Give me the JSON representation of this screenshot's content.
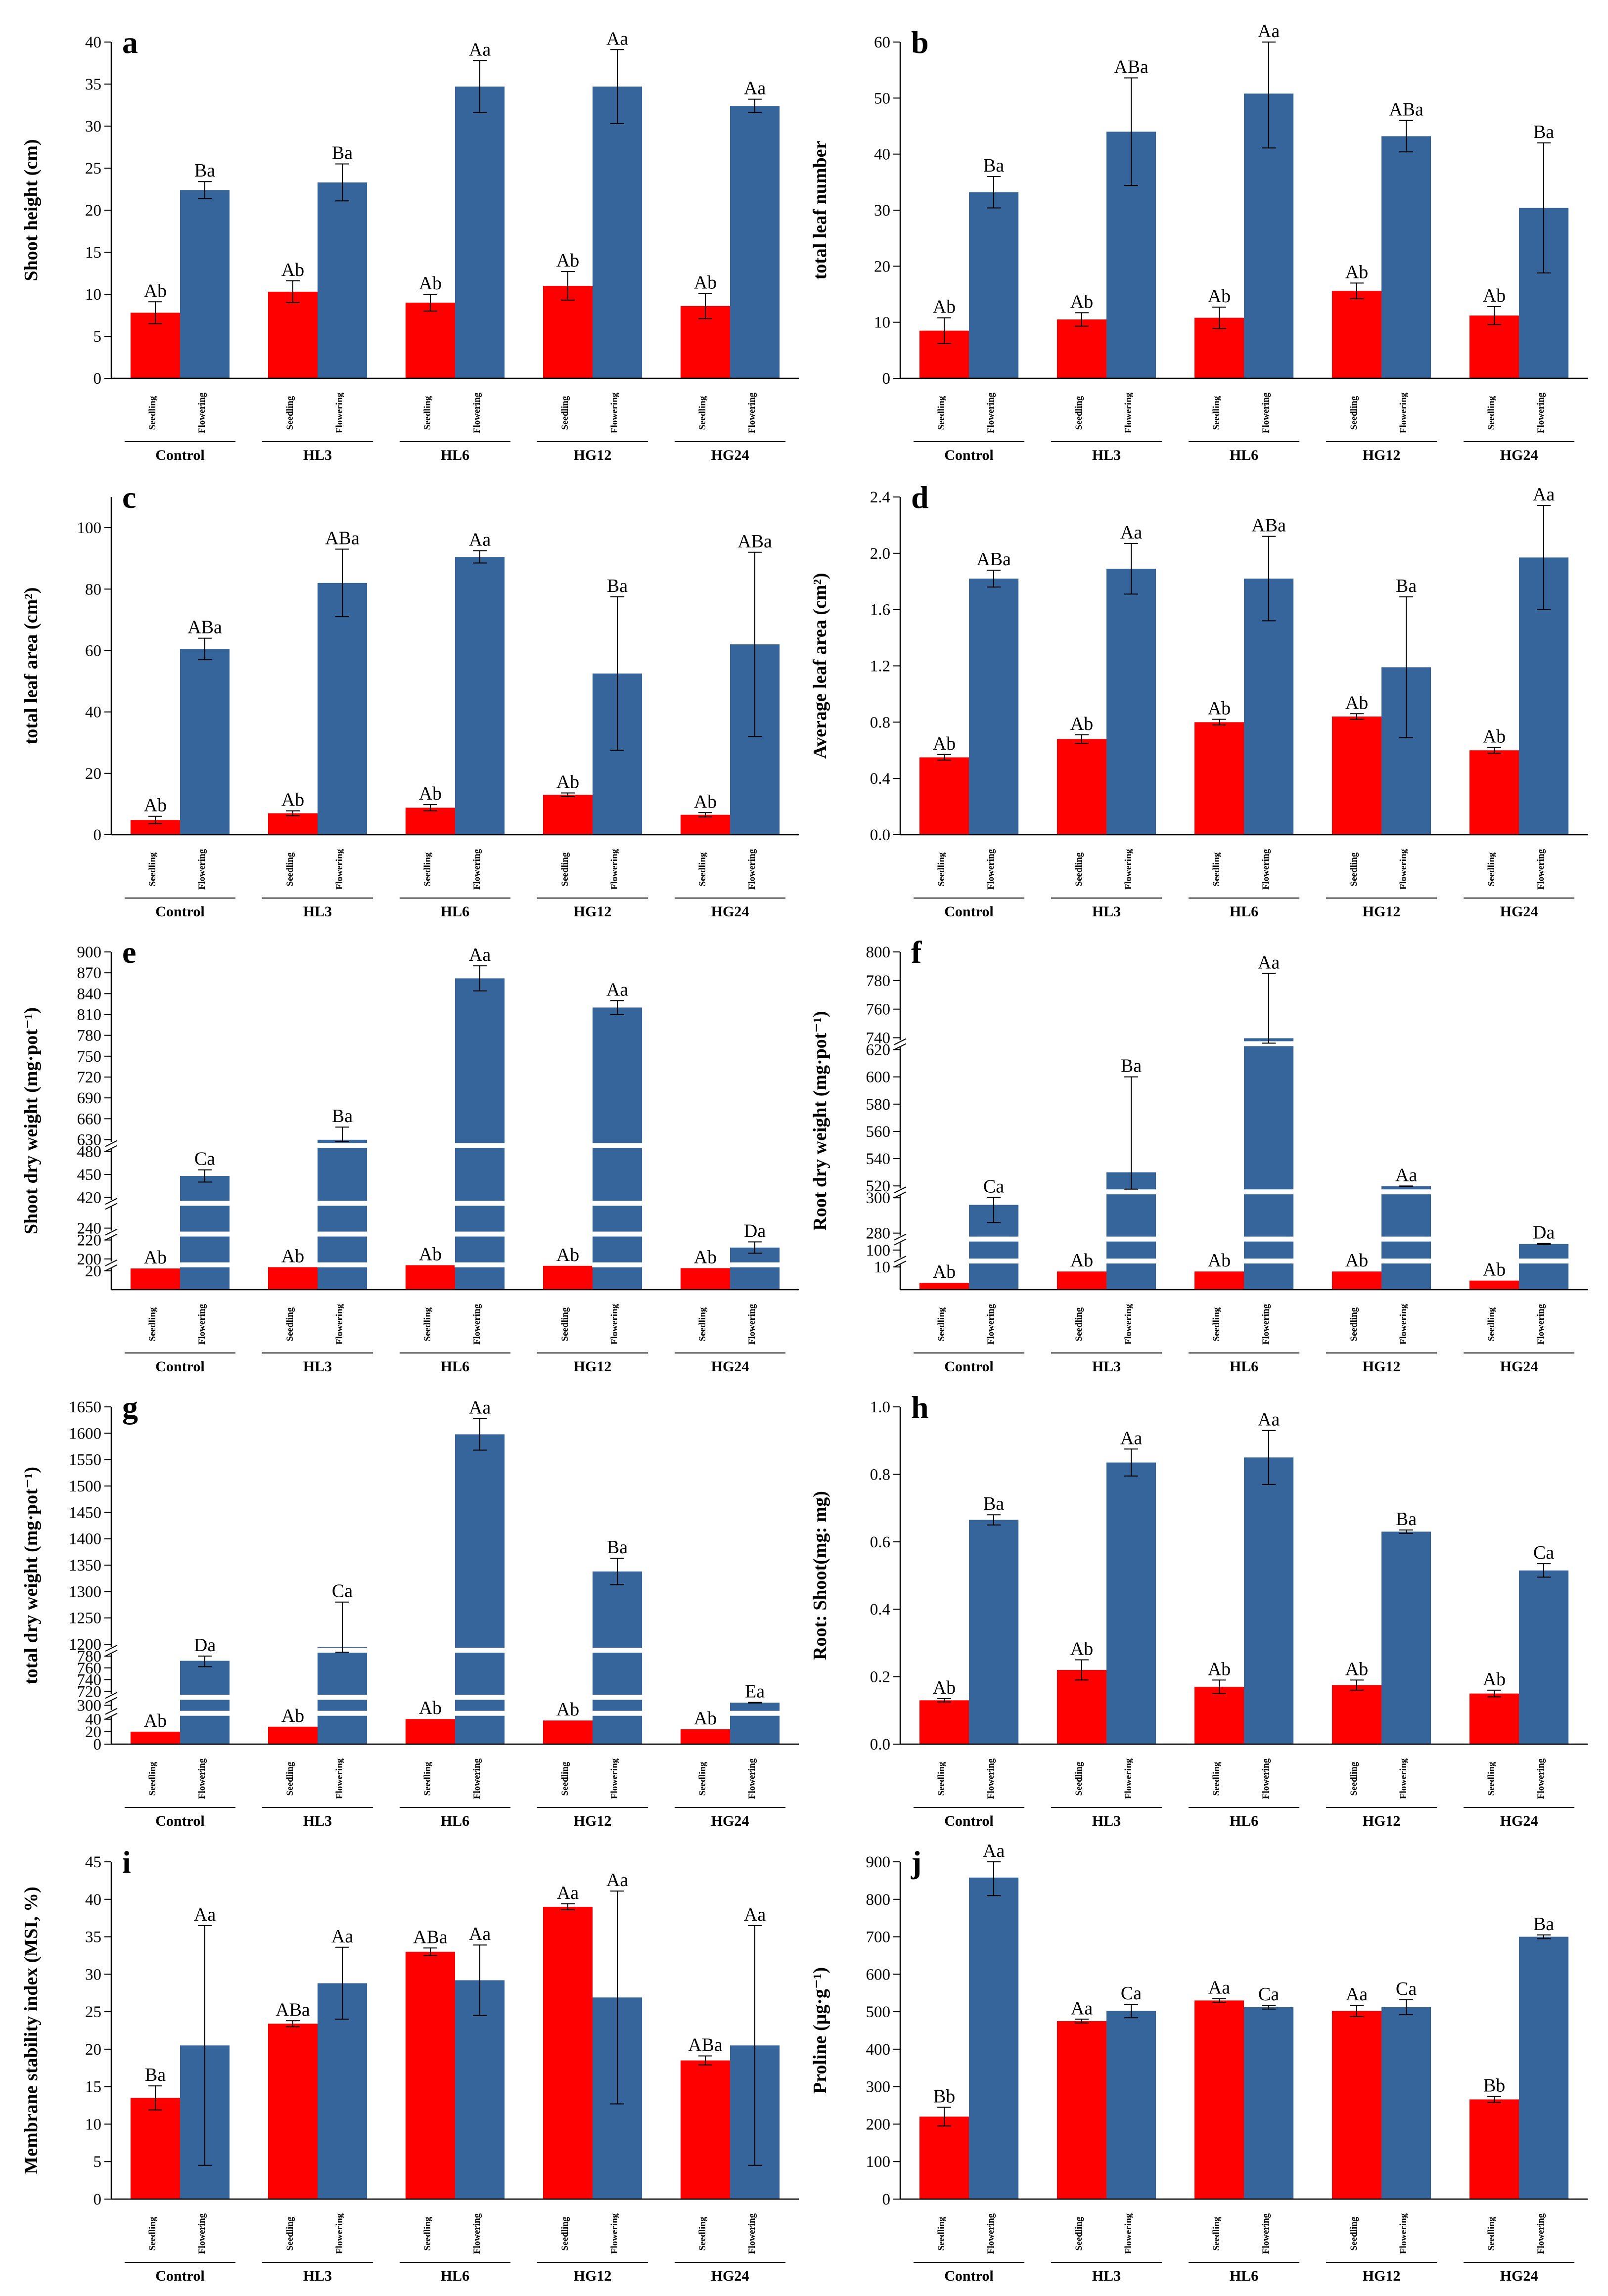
{
  "colors": {
    "seedling": "#ff0000",
    "flowering": "#35659a",
    "axis": "#000000",
    "break": "#ffffff"
  },
  "groups": [
    "Control",
    "HL3",
    "HL6",
    "HG12",
    "HG24"
  ],
  "phases": [
    "Seedling",
    "Flowering"
  ],
  "chart_data": [
    {
      "type": "bar",
      "panel": "a",
      "ylabel": "Shoot height (cm)",
      "ylim": [
        0,
        40
      ],
      "ticks": [
        0,
        5,
        10,
        15,
        20,
        25,
        30,
        35,
        40
      ],
      "tick_labels": [
        "0",
        "5",
        "10",
        "15",
        "20",
        "25",
        "30",
        "35",
        "40"
      ],
      "series": [
        {
          "name": "Seedling",
          "values": [
            7.8,
            10.3,
            9.0,
            11.0,
            8.6
          ],
          "errors": [
            1.3,
            1.3,
            1.0,
            1.7,
            1.5
          ],
          "letters": [
            "Ab",
            "Ab",
            "Ab",
            "Ab",
            "Ab"
          ]
        },
        {
          "name": "Flowering",
          "values": [
            22.4,
            23.3,
            34.7,
            34.7,
            32.4
          ],
          "errors": [
            1.0,
            2.2,
            3.1,
            4.4,
            0.8
          ],
          "letters": [
            "Ba",
            "Ba",
            "Aa",
            "Aa",
            "Aa"
          ]
        }
      ]
    },
    {
      "type": "bar",
      "panel": "b",
      "ylabel": "total leaf number",
      "ylim": [
        0,
        60
      ],
      "ticks": [
        0,
        10,
        20,
        30,
        40,
        50,
        60
      ],
      "tick_labels": [
        "0",
        "10",
        "20",
        "30",
        "40",
        "50",
        "60"
      ],
      "series": [
        {
          "name": "Seedling",
          "values": [
            8.5,
            10.5,
            10.8,
            15.6,
            11.2
          ],
          "errors": [
            2.3,
            1.2,
            1.9,
            1.4,
            1.6
          ],
          "letters": [
            "Ab",
            "Ab",
            "Ab",
            "Ab",
            "Ab"
          ]
        },
        {
          "name": "Flowering",
          "values": [
            33.2,
            44.0,
            50.8,
            43.2,
            30.4
          ],
          "errors": [
            2.8,
            9.6,
            9.7,
            2.8,
            11.6
          ],
          "letters": [
            "Ba",
            "ABa",
            "Aa",
            "ABa",
            "Ba"
          ]
        }
      ]
    },
    {
      "type": "bar",
      "panel": "c",
      "ylabel": "total leaf area (cm²)",
      "ylim": [
        0,
        110
      ],
      "ticks": [
        0,
        20,
        40,
        60,
        80,
        100
      ],
      "tick_labels": [
        "0",
        "20",
        "40",
        "60",
        "80",
        "100"
      ],
      "series": [
        {
          "name": "Seedling",
          "values": [
            4.8,
            7.0,
            8.8,
            13.0,
            6.5
          ],
          "errors": [
            1.2,
            0.8,
            1.0,
            0.6,
            0.7
          ],
          "letters": [
            "Ab",
            "Ab",
            "Ab",
            "Ab",
            "Ab"
          ]
        },
        {
          "name": "Flowering",
          "values": [
            60.5,
            82.0,
            90.5,
            52.5,
            62.0
          ],
          "errors": [
            3.5,
            11.0,
            2.0,
            25.0,
            30.0
          ],
          "letters": [
            "ABa",
            "ABa",
            "Aa",
            "Ba",
            "ABa"
          ]
        }
      ]
    },
    {
      "type": "bar",
      "panel": "d",
      "ylabel": "Average leaf area (cm²)",
      "ylim": [
        0,
        2.4
      ],
      "ticks": [
        0,
        0.4,
        0.8,
        1.2,
        1.6,
        2.0,
        2.4
      ],
      "tick_labels": [
        "0.0",
        "0.4",
        "0.8",
        "1.2",
        "1.6",
        "2.0",
        "2.4"
      ],
      "series": [
        {
          "name": "Seedling",
          "values": [
            0.55,
            0.68,
            0.8,
            0.84,
            0.6
          ],
          "errors": [
            0.02,
            0.03,
            0.02,
            0.02,
            0.02
          ],
          "letters": [
            "Ab",
            "Ab",
            "Ab",
            "Ab",
            "Ab"
          ]
        },
        {
          "name": "Flowering",
          "values": [
            1.82,
            1.89,
            1.82,
            1.19,
            1.97
          ],
          "errors": [
            0.06,
            0.18,
            0.3,
            0.5,
            0.37
          ],
          "letters": [
            "ABa",
            "Aa",
            "ABa",
            "Ba",
            "Aa"
          ]
        }
      ]
    },
    {
      "type": "bar",
      "panel": "e",
      "ylabel": "Shoot dry weight (mg·pot⁻¹)",
      "broken_axis": true,
      "segments": [
        [
          0,
          20
        ],
        [
          200,
          220
        ],
        [
          240,
          260
        ],
        [
          420,
          480
        ],
        [
          630,
          900
        ]
      ],
      "ticks": [
        20,
        200,
        220,
        240,
        420,
        450,
        480,
        630,
        660,
        690,
        720,
        750,
        780,
        810,
        840,
        870,
        900
      ],
      "tick_labels": [
        "20",
        "200",
        "220",
        "240",
        "420",
        "450",
        "480",
        "630",
        "660",
        "690",
        "720",
        "750",
        "780",
        "810",
        "840",
        "870",
        "900"
      ],
      "series": [
        {
          "name": "Seedling",
          "values": [
            55,
            75,
            105,
            95,
            60
          ],
          "errors": [
            0,
            0,
            0,
            0,
            0
          ],
          "letters": [
            "Ab",
            "Ab",
            "Ab",
            "Ab",
            "Ab"
          ]
        },
        {
          "name": "Flowering",
          "values": [
            448,
            628,
            862,
            820,
            212
          ],
          "errors": [
            8,
            20,
            18,
            10,
            6
          ],
          "letters": [
            "Ca",
            "Ba",
            "Aa",
            "Aa",
            "Da"
          ]
        }
      ]
    },
    {
      "type": "bar",
      "panel": "f",
      "ylabel": "Root dry weight (mg·pot⁻¹)",
      "broken_axis": true,
      "segments": [
        [
          0,
          10
        ],
        [
          100,
          100
        ],
        [
          280,
          300
        ],
        [
          520,
          620
        ],
        [
          740,
          800
        ]
      ],
      "ticks": [
        10,
        100,
        280,
        300,
        520,
        540,
        560,
        580,
        600,
        620,
        740,
        760,
        780,
        800
      ],
      "tick_labels": [
        "10",
        "100",
        "280",
        "300",
        "520",
        "540",
        "560",
        "580",
        "600",
        "620",
        "740",
        "760",
        "780",
        "800"
      ],
      "series": [
        {
          "name": "Seedling",
          "values": [
            3,
            8,
            8,
            8,
            4
          ],
          "errors": [
            0,
            0,
            0,
            0,
            0
          ],
          "letters": [
            "Ab",
            "Ab",
            "Ab",
            "Ab",
            "Ab"
          ]
        },
        {
          "name": "Flowering",
          "values": [
            296,
            530,
            735,
            515,
            115
          ],
          "errors": [
            10,
            70,
            50,
            3,
            8
          ],
          "letters": [
            "Ca",
            "Ba",
            "Aa",
            "Aa",
            "Da"
          ]
        }
      ]
    },
    {
      "type": "bar",
      "panel": "g",
      "ylabel": "total dry weight (mg·pot⁻¹)",
      "broken_axis": true,
      "segments": [
        [
          0,
          40
        ],
        [
          300,
          300
        ],
        [
          720,
          780
        ],
        [
          1200,
          1650
        ]
      ],
      "ticks": [
        0,
        20,
        40,
        300,
        720,
        740,
        760,
        780,
        1200,
        1250,
        1300,
        1350,
        1400,
        1450,
        1500,
        1550,
        1600,
        1650
      ],
      "tick_labels": [
        "0",
        "20",
        "40",
        "300",
        "720",
        "740",
        "760",
        "780",
        "1200",
        "1250",
        "1300",
        "1350",
        "1400",
        "1450",
        "1500",
        "1550",
        "1600",
        "1650"
      ],
      "series": [
        {
          "name": "Seedling",
          "values": [
            20,
            28,
            45,
            38,
            24
          ],
          "errors": [
            0,
            0,
            0,
            0,
            0
          ],
          "letters": [
            "Ab",
            "Ab",
            "Ab",
            "Ab",
            "Ab"
          ]
        },
        {
          "name": "Flowering",
          "values": [
            772,
            1100,
            1598,
            1338,
            320
          ],
          "errors": [
            10,
            180,
            30,
            25,
            10
          ],
          "letters": [
            "Da",
            "Ca",
            "Aa",
            "Ba",
            "Ea"
          ]
        }
      ]
    },
    {
      "type": "bar",
      "panel": "h",
      "ylabel": "Root: Shoot(mg: mg)",
      "ylim": [
        0,
        1.0
      ],
      "ticks": [
        0,
        0.2,
        0.4,
        0.6,
        0.8,
        1.0
      ],
      "tick_labels": [
        "0.0",
        "0.2",
        "0.4",
        "0.6",
        "0.8",
        "1.0"
      ],
      "series": [
        {
          "name": "Seedling",
          "values": [
            0.13,
            0.22,
            0.17,
            0.175,
            0.15
          ],
          "errors": [
            0.005,
            0.03,
            0.02,
            0.015,
            0.01
          ],
          "letters": [
            "Ab",
            "Ab",
            "Ab",
            "Ab",
            "Ab"
          ]
        },
        {
          "name": "Flowering",
          "values": [
            0.665,
            0.835,
            0.85,
            0.63,
            0.515
          ],
          "errors": [
            0.015,
            0.04,
            0.08,
            0.005,
            0.02
          ],
          "letters": [
            "Ba",
            "Aa",
            "Aa",
            "Ba",
            "Ca"
          ]
        }
      ]
    },
    {
      "type": "bar",
      "panel": "i",
      "ylabel": "Membrane stability index (MSI, %)",
      "ylim": [
        0,
        45
      ],
      "ticks": [
        0,
        5,
        10,
        15,
        20,
        25,
        30,
        35,
        40,
        45
      ],
      "tick_labels": [
        "0",
        "5",
        "10",
        "15",
        "20",
        "25",
        "30",
        "35",
        "40",
        "45"
      ],
      "series": [
        {
          "name": "Seedling",
          "values": [
            13.5,
            23.4,
            33.0,
            39.0,
            18.5
          ],
          "errors": [
            1.6,
            0.4,
            0.5,
            0.4,
            0.6
          ],
          "letters": [
            "Ba",
            "ABa",
            "ABa",
            "Aa",
            "ABa"
          ]
        },
        {
          "name": "Flowering",
          "values": [
            20.5,
            28.8,
            29.2,
            26.9,
            20.5
          ],
          "errors": [
            16.0,
            4.8,
            4.7,
            14.2,
            16.0
          ],
          "letters": [
            "Aa",
            "Aa",
            "Aa",
            "Aa",
            "Aa"
          ]
        }
      ]
    },
    {
      "type": "bar",
      "panel": "j",
      "ylabel": "Proline (μg·g⁻¹)",
      "ylim": [
        0,
        900
      ],
      "ticks": [
        0,
        100,
        200,
        300,
        400,
        500,
        600,
        700,
        800,
        900
      ],
      "tick_labels": [
        "0",
        "100",
        "200",
        "300",
        "400",
        "500",
        "600",
        "700",
        "800",
        "900"
      ],
      "series": [
        {
          "name": "Seedling",
          "values": [
            220,
            475,
            530,
            502,
            266
          ],
          "errors": [
            25,
            5,
            5,
            15,
            8
          ],
          "letters": [
            "Bb",
            "Aa",
            "Aa",
            "Aa",
            "Bb"
          ]
        },
        {
          "name": "Flowering",
          "values": [
            858,
            502,
            512,
            512,
            700
          ],
          "errors": [
            48,
            18,
            5,
            20,
            5
          ],
          "letters": [
            "Aa",
            "Ca",
            "Ca",
            "Ca",
            "Ba"
          ]
        }
      ]
    }
  ]
}
